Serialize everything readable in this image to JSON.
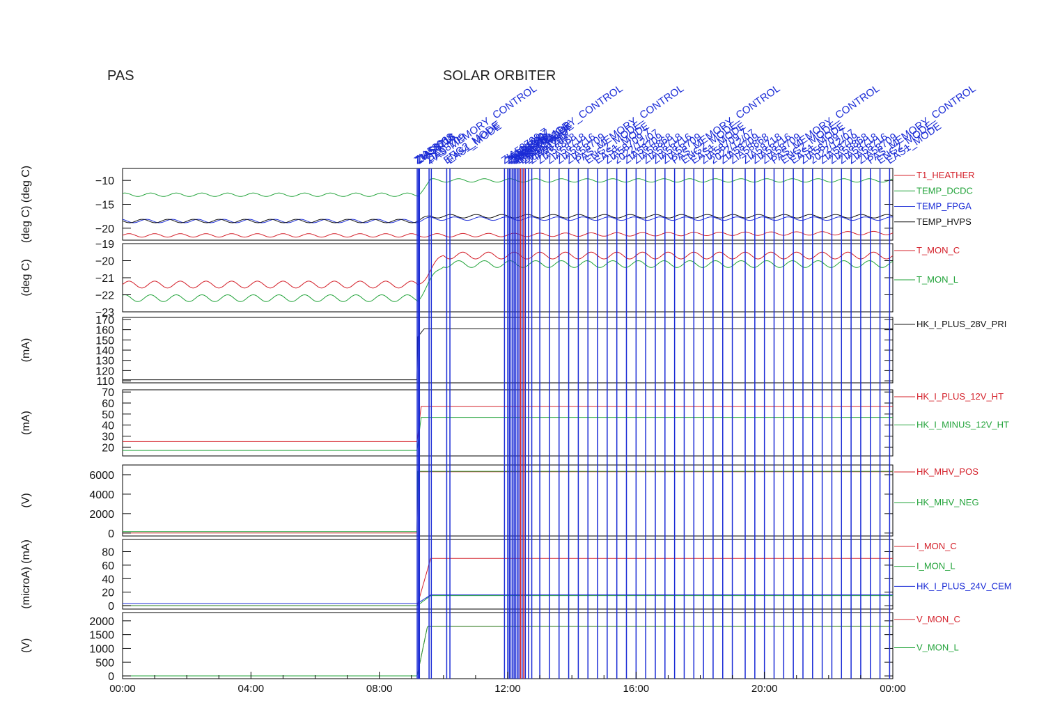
{
  "header": {
    "left_title": "PAS",
    "center_title": "SOLAR ORBITER"
  },
  "time_axis": {
    "tick_labels": [
      "00:00",
      "04:00",
      "08:00",
      "12:00",
      "16:00",
      "20:00",
      "00:00"
    ],
    "tick_hours": [
      0,
      4,
      8,
      12,
      16,
      20,
      24
    ],
    "range_hours": [
      0,
      24
    ]
  },
  "event_markers": {
    "color": "#1a2bd6",
    "labels": [
      "ZIA58868",
      "ZIA58718",
      "ZIA58716",
      "ZIA58709",
      "PAS_MEMORY_CONTROL",
      "ENG2_MODE",
      "EAS1_MODE",
      "ZIA58709 7",
      "2022/12/07",
      "ZIA58709"
    ],
    "times_hours": [
      9.18,
      9.22,
      9.25,
      9.55,
      9.62,
      10.1,
      10.2,
      11.9,
      12.0,
      12.05,
      12.1,
      12.15,
      12.2,
      12.25,
      12.3,
      12.35,
      12.45,
      12.55,
      12.65,
      12.75,
      13.0,
      13.3,
      13.6,
      13.9,
      14.2,
      14.5,
      14.8,
      15.1,
      15.4,
      15.7,
      16.0,
      16.3,
      16.6,
      16.9,
      17.2,
      17.5,
      17.8,
      18.1,
      18.4,
      18.7,
      19.0,
      19.4,
      19.7,
      20.0,
      20.3,
      20.6,
      20.9,
      21.2,
      21.5,
      21.8,
      22.1,
      22.4,
      22.7,
      23.0,
      23.3,
      23.6,
      23.9
    ],
    "red_times_hours": [
      12.4,
      12.5
    ]
  },
  "chart_data": [
    {
      "type": "line",
      "ylabel": "(deg C) (deg C)",
      "ylim": [
        -22.5,
        -7.5
      ],
      "y_ticks": [
        -10,
        -15,
        -20
      ],
      "y_tick_labels": [
        "−10",
        "−15",
        "−20"
      ],
      "x": [
        0,
        9.2,
        9.6,
        24
      ],
      "series": [
        {
          "name": "T1_HEATHER",
          "color": "#d4202a",
          "values": [
            -21.5,
            -21.5,
            -21.5,
            -21.0
          ]
        },
        {
          "name": "TEMP_DCDC",
          "color": "#22a33a",
          "values": [
            -13.0,
            -13.0,
            -10.0,
            -10.0
          ]
        },
        {
          "name": "TEMP_FPGA",
          "color": "#1a2bd6",
          "values": [
            -18.5,
            -18.5,
            -18.0,
            -18.0
          ]
        },
        {
          "name": "TEMP_HVPS",
          "color": "#111111",
          "values": [
            -18.5,
            -18.5,
            -17.5,
            -17.5
          ]
        }
      ]
    },
    {
      "type": "line",
      "ylabel": "(deg C)",
      "ylim": [
        -23,
        -19
      ],
      "y_ticks": [
        -19,
        -20,
        -21,
        -22,
        -23
      ],
      "y_tick_labels": [
        "−19",
        "−20",
        "−21",
        "−22",
        "−23"
      ],
      "x": [
        0,
        9.2,
        10.0,
        24
      ],
      "series": [
        {
          "name": "T_MON_C",
          "color": "#d4202a",
          "values": [
            -21.4,
            -21.4,
            -19.7,
            -19.7
          ]
        },
        {
          "name": "T_MON_L",
          "color": "#22a33a",
          "values": [
            -22.2,
            -22.2,
            -20.2,
            -20.2
          ]
        }
      ]
    },
    {
      "type": "line",
      "ylabel": "(mA)",
      "ylim": [
        108,
        172
      ],
      "y_ticks": [
        170,
        160,
        150,
        140,
        130,
        120,
        110
      ],
      "y_tick_labels": [
        "170",
        "160",
        "150",
        "140",
        "130",
        "120",
        "110"
      ],
      "x": [
        0,
        9.18,
        9.2,
        9.4,
        24
      ],
      "series": [
        {
          "name": "HK_I_PLUS_28V_PRI",
          "color": "#111111",
          "values": [
            111,
            111,
            153,
            161,
            161
          ]
        }
      ]
    },
    {
      "type": "line",
      "ylabel": "(mA)",
      "ylim": [
        12,
        72
      ],
      "y_ticks": [
        70,
        60,
        50,
        40,
        30,
        20
      ],
      "y_tick_labels": [
        "70",
        "60",
        "50",
        "40",
        "30",
        "20"
      ],
      "x": [
        0,
        9.18,
        9.3,
        24
      ],
      "series": [
        {
          "name": "HK_I_PLUS_12V_HT",
          "color": "#d4202a",
          "values": [
            25,
            25,
            57,
            57
          ]
        },
        {
          "name": "HK_I_MINUS_12V_HT",
          "color": "#22a33a",
          "values": [
            17,
            17,
            47,
            47
          ]
        }
      ]
    },
    {
      "type": "line",
      "ylabel": "(V)",
      "ylim": [
        -300,
        7000
      ],
      "y_ticks": [
        6000,
        4000,
        2000,
        0
      ],
      "y_tick_labels": [
        "6000",
        "4000",
        "2000",
        "0"
      ],
      "x": [
        0,
        9.18,
        9.2,
        24
      ],
      "series": [
        {
          "name": "HK_MHV_POS",
          "color": "#d4202a",
          "values": [
            0,
            0,
            6300,
            6300
          ]
        },
        {
          "name": "HK_MHV_NEG",
          "color": "#22a33a",
          "values": [
            150,
            150,
            6350,
            6350
          ]
        }
      ]
    },
    {
      "type": "line",
      "ylabel": "(microA) (mA)",
      "ylim": [
        -5,
        98
      ],
      "y_ticks": [
        80,
        60,
        40,
        20,
        0
      ],
      "y_tick_labels": [
        "80",
        "60",
        "40",
        "20",
        "0"
      ],
      "x": [
        0,
        9.18,
        9.6,
        24
      ],
      "series": [
        {
          "name": "I_MON_C",
          "color": "#d4202a",
          "values": [
            0,
            0,
            70,
            70
          ]
        },
        {
          "name": "I_MON_L",
          "color": "#22a33a",
          "values": [
            0,
            0,
            15,
            15
          ]
        },
        {
          "name": "HK_I_PLUS_24V_CEM",
          "color": "#1a2bd6",
          "values": [
            3,
            3,
            16,
            16
          ]
        }
      ]
    },
    {
      "type": "line",
      "ylabel": "(V)",
      "ylim": [
        -100,
        2300
      ],
      "y_ticks": [
        2000,
        1500,
        1000,
        500,
        0
      ],
      "y_tick_labels": [
        "2000",
        "1500",
        "1000",
        "500",
        "0"
      ],
      "x": [
        0,
        9.18,
        9.5,
        24
      ],
      "series": [
        {
          "name": "V_MON_C",
          "color": "#d4202a",
          "values": [
            0,
            0,
            1800,
            1800
          ]
        },
        {
          "name": "V_MON_L",
          "color": "#22a33a",
          "values": [
            0,
            0,
            1800,
            1800
          ]
        }
      ]
    }
  ]
}
